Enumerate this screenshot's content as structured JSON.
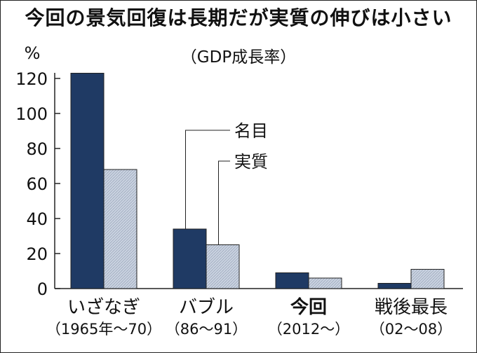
{
  "title": "今回の景気回復は長期だが実質の伸びは小さい",
  "subtitle": "（GDP成長率）",
  "chart_data": {
    "type": "bar",
    "title": "今回の景気回復は長期だが実質の伸びは小さい",
    "subtitle": "（GDP成長率）",
    "unit": "%",
    "ylim": [
      0,
      120
    ],
    "yticks": [
      0,
      20,
      40,
      60,
      80,
      100,
      120
    ],
    "grid": false,
    "categories": [
      "いざなぎ",
      "バブル",
      "今回",
      "戦後最長"
    ],
    "category_periods": [
      "（1965年～70）",
      "（86～91）",
      "（2012～）",
      "（02～08）"
    ],
    "bold_category": "今回",
    "series": [
      {
        "name": "名目",
        "color": "#1f3a64",
        "values": [
          123,
          34,
          9,
          3
        ]
      },
      {
        "name": "実質",
        "color": "#c9d2e0",
        "values": [
          68,
          25,
          6,
          11
        ]
      }
    ]
  }
}
